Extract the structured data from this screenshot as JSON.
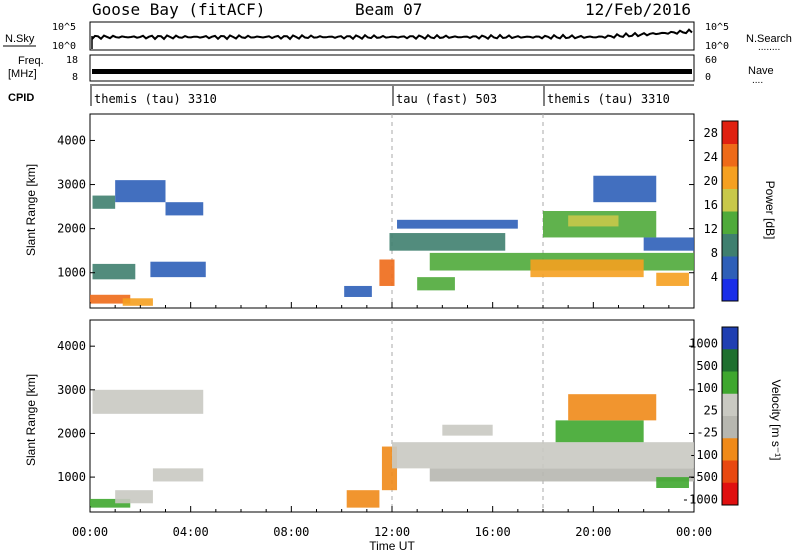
{
  "header": {
    "station": "Goose Bay (fitACF)",
    "beam": "Beam 07",
    "date": "12/Feb/2016"
  },
  "side_labels": {
    "nsky": "N.Sky",
    "nsearch": "N.Search",
    "freq_line1": "Freq.",
    "freq_line2": "[MHz]",
    "nave": "Nave",
    "cpid": "CPID",
    "dots_nsearch": "........",
    "dots_nave": "...."
  },
  "axis_labels": {
    "ylabel": "Slant Range [km]",
    "xlabel": "Time UT",
    "power_cb": "Power [dB]",
    "velocity_cb": "Velocity [m s⁻¹]"
  },
  "small_axes": {
    "nsky_left_top": "10^5",
    "nsky_left_bot": "10^0",
    "nsearch_right_top": "10^5",
    "nsearch_right_bot": "10^0",
    "freq_left_top": "18",
    "freq_left_bot": "8",
    "nave_right_top": "60",
    "nave_right_bot": "0"
  },
  "cpid_segments": [
    {
      "label": "themis (tau) 3310",
      "start_hour": 0
    },
    {
      "label": "tau (fast) 503",
      "start_hour": 12
    },
    {
      "label": "themis (tau) 3310",
      "start_hour": 18
    }
  ],
  "colors": {
    "power": [
      "#1a2ee8",
      "#2e5fb8",
      "#3f7f6f",
      "#4faa3a",
      "#c8c84a",
      "#f5a020",
      "#ee6a18",
      "#e02010"
    ],
    "velocity": [
      "#1f3fb2",
      "#1f6f2f",
      "#3fa72f",
      "#c9c9c2",
      "#b7b7b0",
      "#f08a18",
      "#e84810",
      "#e01010"
    ]
  },
  "chart_data": [
    {
      "type": "heatmap",
      "title": "Power",
      "x_ticks": [
        "00:00",
        "04:00",
        "08:00",
        "12:00",
        "16:00",
        "20:00",
        "00:00"
      ],
      "xlim": [
        0,
        24
      ],
      "y_ticks": [
        1000,
        2000,
        3000,
        4000
      ],
      "ylim": [
        200,
        4600
      ],
      "colorbar_label": "Power [dB]",
      "colorbar_ticks": [
        4,
        8,
        12,
        16,
        20,
        24,
        28
      ],
      "colorbar_range": [
        0,
        30
      ],
      "regions": [
        {
          "t0": 0.0,
          "t1": 1.6,
          "r0": 300,
          "r1": 500,
          "v": 26
        },
        {
          "t0": 1.3,
          "t1": 2.5,
          "r0": 250,
          "r1": 420,
          "v": 22
        },
        {
          "t0": 0.1,
          "t1": 1.0,
          "r0": 2450,
          "r1": 2750,
          "v": 8
        },
        {
          "t0": 1.0,
          "t1": 3.0,
          "r0": 2600,
          "r1": 3100,
          "v": 6
        },
        {
          "t0": 3.0,
          "t1": 4.5,
          "r0": 2300,
          "r1": 2600,
          "v": 6
        },
        {
          "t0": 2.4,
          "t1": 4.6,
          "r0": 900,
          "r1": 1250,
          "v": 7
        },
        {
          "t0": 0.1,
          "t1": 1.8,
          "r0": 850,
          "r1": 1200,
          "v": 10
        },
        {
          "t0": 10.1,
          "t1": 11.2,
          "r0": 450,
          "r1": 700,
          "v": 5
        },
        {
          "t0": 11.5,
          "t1": 12.1,
          "r0": 700,
          "r1": 1300,
          "v": 24
        },
        {
          "t0": 11.9,
          "t1": 16.5,
          "r0": 1500,
          "r1": 1900,
          "v": 10
        },
        {
          "t0": 13.5,
          "t1": 24.0,
          "r0": 1050,
          "r1": 1450,
          "v": 14
        },
        {
          "t0": 17.5,
          "t1": 22.0,
          "r0": 900,
          "r1": 1300,
          "v": 21
        },
        {
          "t0": 12.2,
          "t1": 17.0,
          "r0": 2000,
          "r1": 2200,
          "v": 7
        },
        {
          "t0": 18.0,
          "t1": 22.5,
          "r0": 1800,
          "r1": 2400,
          "v": 12
        },
        {
          "t0": 19.0,
          "t1": 21.0,
          "r0": 2050,
          "r1": 2300,
          "v": 18
        },
        {
          "t0": 22.5,
          "t1": 23.8,
          "r0": 700,
          "r1": 1000,
          "v": 22
        },
        {
          "t0": 13.0,
          "t1": 14.5,
          "r0": 600,
          "r1": 900,
          "v": 12
        },
        {
          "t0": 22.0,
          "t1": 24.0,
          "r0": 1500,
          "r1": 1800,
          "v": 7
        },
        {
          "t0": 20.0,
          "t1": 22.5,
          "r0": 2600,
          "r1": 3200,
          "v": 5
        }
      ]
    },
    {
      "type": "heatmap",
      "title": "Velocity",
      "x_ticks": [
        "00:00",
        "04:00",
        "08:00",
        "12:00",
        "16:00",
        "20:00",
        "00:00"
      ],
      "xlim": [
        0,
        24
      ],
      "y_ticks": [
        1000,
        2000,
        3000,
        4000
      ],
      "ylim": [
        200,
        4600
      ],
      "colorbar_label": "Velocity [m s⁻¹]",
      "colorbar_ticks": [
        1000,
        500,
        100,
        25,
        -25,
        -100,
        -500,
        -1000
      ],
      "regions": [
        {
          "t0": 0.0,
          "t1": 1.6,
          "r0": 300,
          "r1": 500,
          "v": 2
        },
        {
          "t0": 1.0,
          "t1": 2.5,
          "r0": 400,
          "r1": 700,
          "v": 3
        },
        {
          "t0": 0.1,
          "t1": 4.5,
          "r0": 2450,
          "r1": 3000,
          "v": 3
        },
        {
          "t0": 2.5,
          "t1": 4.5,
          "r0": 900,
          "r1": 1200,
          "v": 3
        },
        {
          "t0": 10.2,
          "t1": 11.5,
          "r0": 300,
          "r1": 700,
          "v": 5
        },
        {
          "t0": 11.6,
          "t1": 12.2,
          "r0": 700,
          "r1": 1700,
          "v": 5
        },
        {
          "t0": 12.0,
          "t1": 24.0,
          "r0": 1200,
          "r1": 1800,
          "v": 3
        },
        {
          "t0": 13.5,
          "t1": 24.0,
          "r0": 900,
          "r1": 1200,
          "v": 4
        },
        {
          "t0": 18.5,
          "t1": 22.0,
          "r0": 1800,
          "r1": 2300,
          "v": 2
        },
        {
          "t0": 19.0,
          "t1": 22.5,
          "r0": 2300,
          "r1": 2900,
          "v": 5
        },
        {
          "t0": 22.5,
          "t1": 23.8,
          "r0": 750,
          "r1": 1000,
          "v": 2
        },
        {
          "t0": 14.0,
          "t1": 16.0,
          "r0": 1950,
          "r1": 2200,
          "v": 3
        }
      ]
    }
  ]
}
